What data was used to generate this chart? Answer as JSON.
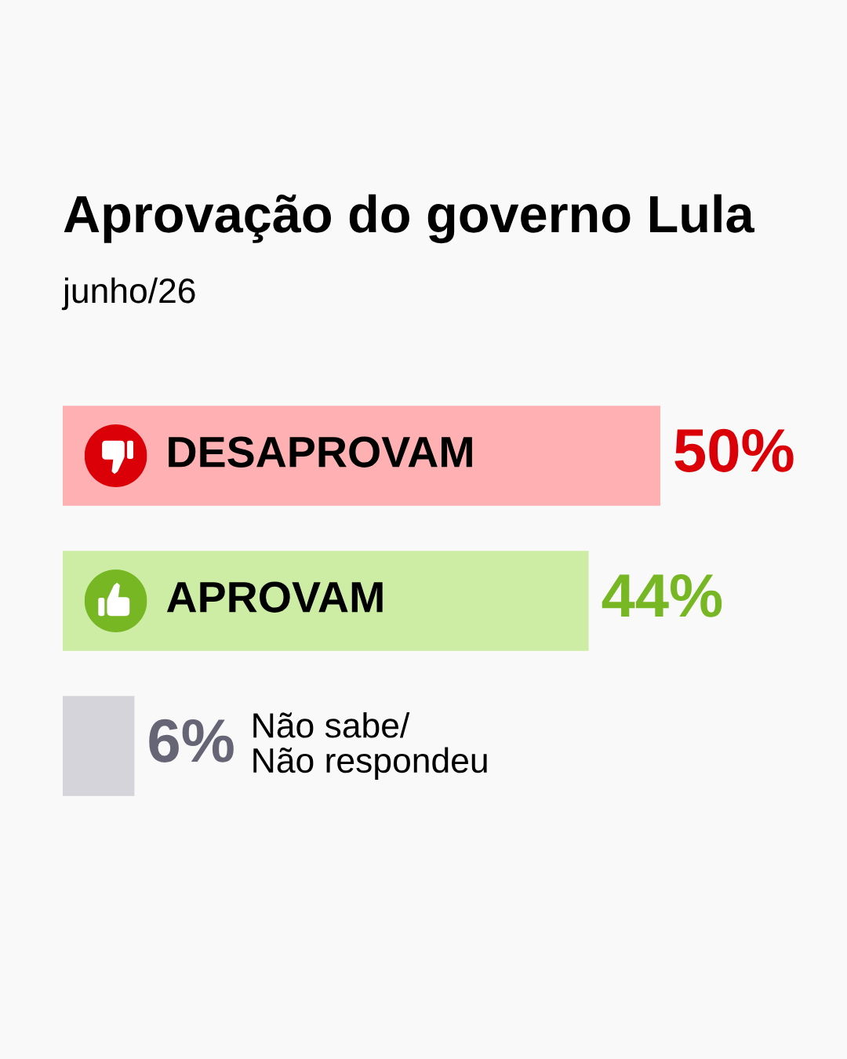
{
  "chart_data": {
    "type": "bar",
    "orientation": "horizontal",
    "title": "Aprovação do governo Lula",
    "subtitle": "junho/26",
    "categories": [
      "DESAPROVAM",
      "APROVAM",
      "Não sabe/\nNão respondeu"
    ],
    "values": [
      50,
      44,
      6
    ],
    "colors": [
      "#ffb0b3",
      "#cdeda4",
      "#d4d4da"
    ],
    "value_labels": [
      "50%",
      "44%",
      "6%"
    ],
    "tick_labels": false
  }
}
